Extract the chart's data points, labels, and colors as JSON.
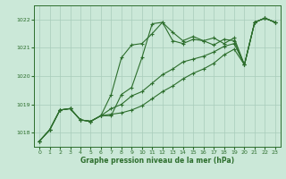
{
  "bg_color": "#cbe8d8",
  "grid_color": "#a8ccba",
  "line_color": "#2d6e2d",
  "xlabel": "Graphe pression niveau de la mer (hPa)",
  "xlim": [
    -0.5,
    23.5
  ],
  "ylim": [
    1017.5,
    1022.5
  ],
  "yticks": [
    1018,
    1019,
    1020,
    1021,
    1022
  ],
  "xticks": [
    0,
    1,
    2,
    3,
    4,
    5,
    6,
    7,
    8,
    9,
    10,
    11,
    12,
    13,
    14,
    15,
    16,
    17,
    18,
    19,
    20,
    21,
    22,
    23
  ],
  "series": [
    [
      1017.7,
      1018.1,
      1018.8,
      1018.85,
      1018.45,
      1018.4,
      1018.6,
      1018.6,
      1019.35,
      1019.6,
      1020.65,
      1021.85,
      1021.9,
      1021.55,
      1021.25,
      1021.4,
      1021.25,
      1021.35,
      1021.15,
      1021.35,
      1020.4,
      1021.9,
      1022.05,
      1021.9
    ],
    [
      1017.7,
      1018.1,
      1018.8,
      1018.85,
      1018.45,
      1018.4,
      1018.6,
      1019.35,
      1020.65,
      1021.1,
      1021.15,
      1021.5,
      1021.9,
      1021.25,
      1021.15,
      1021.3,
      1021.25,
      1021.1,
      1021.3,
      1021.25,
      1020.4,
      1021.9,
      1022.05,
      1021.9
    ],
    [
      1017.7,
      1018.1,
      1018.8,
      1018.85,
      1018.45,
      1018.4,
      1018.6,
      1018.85,
      1019.0,
      1019.3,
      1019.45,
      1019.75,
      1020.05,
      1020.25,
      1020.5,
      1020.6,
      1020.7,
      1020.85,
      1021.05,
      1021.15,
      1020.4,
      1021.9,
      1022.05,
      1021.9
    ],
    [
      1017.7,
      1018.1,
      1018.8,
      1018.85,
      1018.45,
      1018.4,
      1018.6,
      1018.65,
      1018.7,
      1018.8,
      1018.95,
      1019.2,
      1019.45,
      1019.65,
      1019.9,
      1020.1,
      1020.25,
      1020.45,
      1020.75,
      1020.95,
      1020.4,
      1021.9,
      1022.05,
      1021.9
    ]
  ]
}
